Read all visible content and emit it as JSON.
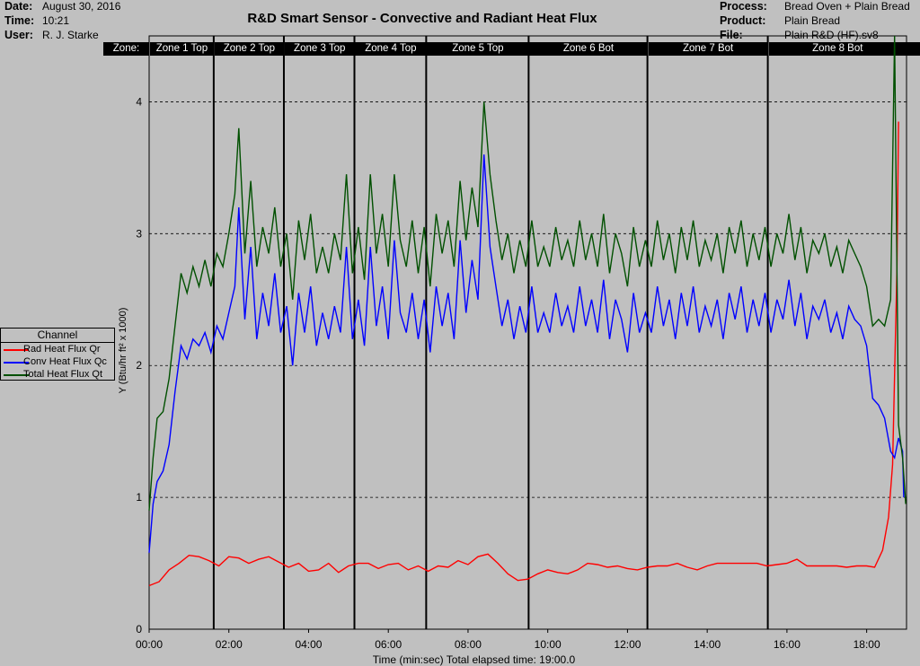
{
  "header": {
    "left": [
      {
        "key": "Date:",
        "value": "August 30, 2016"
      },
      {
        "key": "Time:",
        "value": "10:21"
      },
      {
        "key": "User:",
        "value": "R. J. Starke"
      }
    ],
    "right": [
      {
        "key": "Process:",
        "value": "Bread Oven + Plain Bread"
      },
      {
        "key": "Product:",
        "value": "Plain Bread"
      },
      {
        "key": "File:",
        "value": "Plain R&D (HF).sv8"
      }
    ]
  },
  "zones": [
    {
      "label": "Zone:"
    },
    {
      "label": "Zone 1 Top",
      "start": 0.0,
      "end": 1.62
    },
    {
      "label": "Zone 2 Top",
      "start": 1.62,
      "end": 3.38
    },
    {
      "label": "Zone 3 Top",
      "start": 3.38,
      "end": 5.15
    },
    {
      "label": "Zone 4 Top",
      "start": 5.15,
      "end": 6.95
    },
    {
      "label": "Zone 5 Top",
      "start": 6.95,
      "end": 9.52
    },
    {
      "label": "Zone 6 Bot",
      "start": 9.52,
      "end": 12.5
    },
    {
      "label": "Zone 7 Bot",
      "start": 12.5,
      "end": 15.52
    },
    {
      "label": "Zone 8 Bot",
      "start": 15.52,
      "end": 19.0
    }
  ],
  "colors": {
    "background": "#c0c0c0",
    "rad": "#ff0000",
    "conv": "#0000ff",
    "total": "#005000",
    "zone_line": "#000000",
    "grid": "#000000"
  },
  "chart_data": {
    "type": "line",
    "title": "R&D Smart Sensor - Convective and Radiant Heat Flux",
    "xlabel": "Time (min:sec) Total elapsed time: 19:00.0",
    "ylabel": "Y (Btu/hr ft² x 1000)",
    "xlim": [
      0,
      19
    ],
    "ylim": [
      0,
      4.5
    ],
    "x_ticks": [
      0,
      2,
      4,
      6,
      8,
      10,
      12,
      14,
      16,
      18
    ],
    "x_tick_labels": [
      "00:00",
      "02:00",
      "04:00",
      "06:00",
      "08:00",
      "10:00",
      "12:00",
      "14:00",
      "16:00",
      "18:00"
    ],
    "y_ticks": [
      0,
      1,
      2,
      3,
      4
    ],
    "y_tick_labels": [
      "0",
      "1",
      "2",
      "3",
      "4"
    ],
    "grid": "horizontal dashed",
    "legend_title": "Channel",
    "legend_position": "left",
    "series": [
      {
        "name": "Rad Heat Flux Qr",
        "color": "#ff0000",
        "x": [
          0,
          0.25,
          0.5,
          0.75,
          1.0,
          1.25,
          1.5,
          1.75,
          2.0,
          2.25,
          2.5,
          2.75,
          3.0,
          3.25,
          3.5,
          3.75,
          4.0,
          4.25,
          4.5,
          4.75,
          5.0,
          5.25,
          5.5,
          5.75,
          6.0,
          6.25,
          6.5,
          6.75,
          7.0,
          7.25,
          7.5,
          7.75,
          8.0,
          8.25,
          8.5,
          8.75,
          9.0,
          9.25,
          9.5,
          9.75,
          10.0,
          10.25,
          10.5,
          10.75,
          11.0,
          11.25,
          11.5,
          11.75,
          12.0,
          12.25,
          12.5,
          12.75,
          13.0,
          13.25,
          13.5,
          13.75,
          14.0,
          14.25,
          14.5,
          14.75,
          15.0,
          15.25,
          15.5,
          15.75,
          16.0,
          16.25,
          16.5,
          16.75,
          17.0,
          17.25,
          17.5,
          17.75,
          18.0,
          18.2,
          18.4,
          18.55,
          18.65,
          18.72,
          18.76,
          18.8
        ],
        "y": [
          0.33,
          0.36,
          0.45,
          0.5,
          0.56,
          0.55,
          0.52,
          0.48,
          0.55,
          0.54,
          0.5,
          0.53,
          0.55,
          0.51,
          0.47,
          0.5,
          0.44,
          0.45,
          0.5,
          0.43,
          0.48,
          0.5,
          0.5,
          0.46,
          0.49,
          0.5,
          0.45,
          0.48,
          0.44,
          0.48,
          0.47,
          0.52,
          0.49,
          0.55,
          0.57,
          0.5,
          0.42,
          0.37,
          0.38,
          0.42,
          0.45,
          0.43,
          0.42,
          0.45,
          0.5,
          0.49,
          0.47,
          0.48,
          0.46,
          0.45,
          0.47,
          0.48,
          0.48,
          0.5,
          0.47,
          0.45,
          0.48,
          0.5,
          0.5,
          0.5,
          0.5,
          0.5,
          0.48,
          0.49,
          0.5,
          0.53,
          0.48,
          0.48,
          0.48,
          0.48,
          0.47,
          0.48,
          0.48,
          0.47,
          0.6,
          0.85,
          1.25,
          2.2,
          2.75,
          3.85
        ]
      },
      {
        "name": "Conv Heat Flux  Qc",
        "color": "#0000ff",
        "x": [
          0,
          0.1,
          0.2,
          0.35,
          0.5,
          0.65,
          0.8,
          0.95,
          1.1,
          1.25,
          1.4,
          1.55,
          1.7,
          1.85,
          2.0,
          2.15,
          2.25,
          2.4,
          2.55,
          2.7,
          2.85,
          3.0,
          3.15,
          3.3,
          3.45,
          3.6,
          3.75,
          3.9,
          4.05,
          4.2,
          4.35,
          4.5,
          4.65,
          4.8,
          4.95,
          5.1,
          5.25,
          5.4,
          5.55,
          5.7,
          5.85,
          6.0,
          6.15,
          6.3,
          6.45,
          6.6,
          6.75,
          6.9,
          7.05,
          7.2,
          7.35,
          7.5,
          7.65,
          7.8,
          7.95,
          8.1,
          8.25,
          8.4,
          8.55,
          8.7,
          8.85,
          9.0,
          9.15,
          9.3,
          9.45,
          9.6,
          9.75,
          9.9,
          10.05,
          10.2,
          10.35,
          10.5,
          10.65,
          10.8,
          10.95,
          11.1,
          11.25,
          11.4,
          11.55,
          11.7,
          11.85,
          12.0,
          12.15,
          12.3,
          12.45,
          12.6,
          12.75,
          12.9,
          13.05,
          13.2,
          13.35,
          13.5,
          13.65,
          13.8,
          13.95,
          14.1,
          14.25,
          14.4,
          14.55,
          14.7,
          14.85,
          15.0,
          15.15,
          15.3,
          15.45,
          15.6,
          15.75,
          15.9,
          16.05,
          16.2,
          16.35,
          16.5,
          16.65,
          16.8,
          16.95,
          17.1,
          17.25,
          17.4,
          17.55,
          17.7,
          17.85,
          18.0,
          18.15,
          18.3,
          18.45,
          18.6,
          18.7,
          18.8,
          18.9,
          18.93
        ],
        "y": [
          0.58,
          0.95,
          1.12,
          1.2,
          1.4,
          1.8,
          2.15,
          2.05,
          2.2,
          2.15,
          2.25,
          2.1,
          2.3,
          2.2,
          2.4,
          2.6,
          3.2,
          2.35,
          2.9,
          2.2,
          2.55,
          2.3,
          2.7,
          2.25,
          2.45,
          2.0,
          2.55,
          2.25,
          2.6,
          2.15,
          2.4,
          2.2,
          2.45,
          2.25,
          2.9,
          2.2,
          2.5,
          2.15,
          2.9,
          2.3,
          2.6,
          2.2,
          2.95,
          2.4,
          2.25,
          2.55,
          2.2,
          2.5,
          2.1,
          2.6,
          2.3,
          2.55,
          2.2,
          2.95,
          2.4,
          2.8,
          2.5,
          3.6,
          2.9,
          2.6,
          2.3,
          2.5,
          2.2,
          2.45,
          2.25,
          2.6,
          2.25,
          2.4,
          2.25,
          2.55,
          2.3,
          2.45,
          2.25,
          2.6,
          2.3,
          2.5,
          2.25,
          2.65,
          2.2,
          2.5,
          2.35,
          2.1,
          2.55,
          2.25,
          2.4,
          2.25,
          2.6,
          2.3,
          2.5,
          2.2,
          2.55,
          2.3,
          2.6,
          2.25,
          2.45,
          2.3,
          2.5,
          2.2,
          2.55,
          2.35,
          2.6,
          2.25,
          2.5,
          2.3,
          2.55,
          2.25,
          2.5,
          2.35,
          2.65,
          2.3,
          2.55,
          2.2,
          2.45,
          2.35,
          2.5,
          2.25,
          2.4,
          2.2,
          2.45,
          2.35,
          2.3,
          2.15,
          1.75,
          1.7,
          1.6,
          1.35,
          1.3,
          1.45,
          1.35,
          1.0
        ]
      },
      {
        "name": "Total Heat Flux Qt",
        "color": "#005000",
        "x": [
          0,
          0.1,
          0.2,
          0.35,
          0.5,
          0.65,
          0.8,
          0.95,
          1.1,
          1.25,
          1.4,
          1.55,
          1.7,
          1.85,
          2.0,
          2.15,
          2.25,
          2.4,
          2.55,
          2.7,
          2.85,
          3.0,
          3.15,
          3.3,
          3.45,
          3.6,
          3.75,
          3.9,
          4.05,
          4.2,
          4.35,
          4.5,
          4.65,
          4.8,
          4.95,
          5.1,
          5.25,
          5.4,
          5.55,
          5.7,
          5.85,
          6.0,
          6.15,
          6.3,
          6.45,
          6.6,
          6.75,
          6.9,
          7.05,
          7.2,
          7.35,
          7.5,
          7.65,
          7.8,
          7.95,
          8.1,
          8.25,
          8.4,
          8.55,
          8.7,
          8.85,
          9.0,
          9.15,
          9.3,
          9.45,
          9.6,
          9.75,
          9.9,
          10.05,
          10.2,
          10.35,
          10.5,
          10.65,
          10.8,
          10.95,
          11.1,
          11.25,
          11.4,
          11.55,
          11.7,
          11.85,
          12.0,
          12.15,
          12.3,
          12.45,
          12.6,
          12.75,
          12.9,
          13.05,
          13.2,
          13.35,
          13.5,
          13.65,
          13.8,
          13.95,
          14.1,
          14.25,
          14.4,
          14.55,
          14.7,
          14.85,
          15.0,
          15.15,
          15.3,
          15.45,
          15.6,
          15.75,
          15.9,
          16.05,
          16.2,
          16.35,
          16.5,
          16.65,
          16.8,
          16.95,
          17.1,
          17.25,
          17.4,
          17.55,
          17.7,
          17.85,
          18.0,
          18.15,
          18.3,
          18.45,
          18.6,
          18.7,
          18.8,
          18.9,
          18.98
        ],
        "y": [
          0.9,
          1.3,
          1.6,
          1.65,
          1.9,
          2.3,
          2.7,
          2.55,
          2.75,
          2.6,
          2.8,
          2.6,
          2.85,
          2.75,
          3.0,
          3.3,
          3.8,
          2.85,
          3.4,
          2.75,
          3.05,
          2.85,
          3.2,
          2.75,
          3.0,
          2.5,
          3.1,
          2.8,
          3.15,
          2.7,
          2.9,
          2.7,
          3.0,
          2.8,
          3.45,
          2.7,
          3.05,
          2.65,
          3.45,
          2.85,
          3.15,
          2.75,
          3.45,
          2.95,
          2.75,
          3.1,
          2.7,
          3.05,
          2.6,
          3.15,
          2.85,
          3.1,
          2.75,
          3.4,
          2.95,
          3.35,
          3.05,
          4.0,
          3.45,
          3.1,
          2.8,
          3.0,
          2.7,
          2.95,
          2.75,
          3.1,
          2.75,
          2.9,
          2.75,
          3.05,
          2.8,
          2.95,
          2.75,
          3.1,
          2.8,
          3.0,
          2.75,
          3.15,
          2.7,
          3.0,
          2.85,
          2.6,
          3.05,
          2.75,
          2.95,
          2.75,
          3.1,
          2.8,
          3.0,
          2.7,
          3.05,
          2.8,
          3.1,
          2.75,
          2.95,
          2.8,
          3.0,
          2.7,
          3.05,
          2.85,
          3.1,
          2.75,
          3.0,
          2.8,
          3.05,
          2.75,
          3.0,
          2.85,
          3.15,
          2.8,
          3.05,
          2.7,
          2.95,
          2.85,
          3.0,
          2.75,
          2.9,
          2.7,
          2.95,
          2.85,
          2.75,
          2.6,
          2.3,
          2.35,
          2.3,
          2.5,
          4.5,
          1.55,
          1.3,
          0.95
        ]
      }
    ]
  }
}
